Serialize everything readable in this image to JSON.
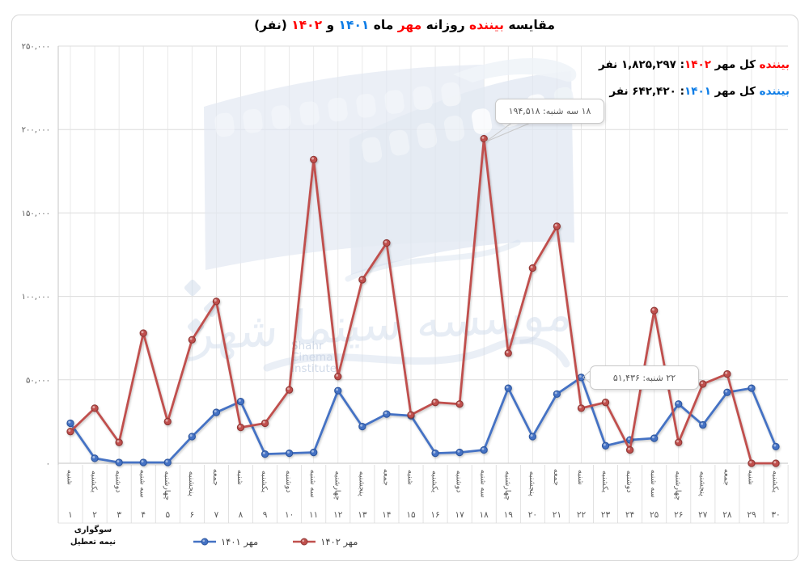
{
  "title": {
    "parts": [
      {
        "text": "مقایسه ",
        "color": "#000000"
      },
      {
        "text": "بیننده",
        "color": "#ff0000"
      },
      {
        "text": " روزانه ",
        "color": "#000000"
      },
      {
        "text": "مهر",
        "color": "#ff0000"
      },
      {
        "text": " ماه ",
        "color": "#000000"
      },
      {
        "text": "۱۴۰۱",
        "color": "#0c7ce6"
      },
      {
        "text": " و ",
        "color": "#000000"
      },
      {
        "text": "۱۴۰۲",
        "color": "#ff0000"
      },
      {
        "text": " (نفر)",
        "color": "#000000"
      }
    ]
  },
  "totals": [
    {
      "parts": [
        {
          "text": "بیننده",
          "color": "#ff0000"
        },
        {
          "text": " کل مهر ",
          "color": "#000000"
        },
        {
          "text": "۱۴۰۲",
          "color": "#ff0000"
        },
        {
          "text": ": ۱,۸۲۵,۲۹۷ نفر",
          "color": "#000000"
        }
      ]
    },
    {
      "parts": [
        {
          "text": "بیننده",
          "color": "#0c7ce6"
        },
        {
          "text": " کل مهر ",
          "color": "#000000"
        },
        {
          "text": "۱۴۰۱",
          "color": "#0c7ce6"
        },
        {
          "text": ": ۶۴۲,۴۲۰ نفر",
          "color": "#000000"
        }
      ]
    }
  ],
  "chart_data": {
    "type": "line",
    "title": "مقایسه بیننده روزانه مهر ماه ۱۴۰۱ و ۱۴۰۲ (نفر)",
    "x_day_numbers": [
      "۱",
      "۲",
      "۳",
      "۴",
      "۵",
      "۶",
      "۷",
      "۸",
      "۹",
      "۱۰",
      "۱۱",
      "۱۲",
      "۱۳",
      "۱۴",
      "۱۵",
      "۱۶",
      "۱۷",
      "۱۸",
      "۱۹",
      "۲۰",
      "۲۱",
      "۲۲",
      "۲۳",
      "۲۴",
      "۲۵",
      "۲۶",
      "۲۷",
      "۲۸",
      "۲۹",
      "۳۰"
    ],
    "x_day_names": [
      "شنبه",
      "یکشنبه",
      "دوشنبه",
      "سه شنبه",
      "چهارشنبه",
      "پنجشنبه",
      "جمعه",
      "شنبه",
      "یکشنبه",
      "دوشنبه",
      "سه شنبه",
      "چهارشنبه",
      "پنجشنبه",
      "جمعه",
      "شنبه",
      "یکشنبه",
      "دوشنبه",
      "سه شنبه",
      "چهارشنبه",
      "پنجشنبه",
      "جمعه",
      "شنبه",
      "یکشنبه",
      "دوشنبه",
      "سه شنبه",
      "چهارشنبه",
      "پنجشنبه",
      "جمعه",
      "شنبه",
      "یکشنبه"
    ],
    "ylim": [
      0,
      250000
    ],
    "ytick_step": 50000,
    "ytick_labels": [
      "۰",
      "۵۰,۰۰۰",
      "۱۰۰,۰۰۰",
      "۱۵۰,۰۰۰",
      "۲۰۰,۰۰۰",
      "۲۵۰,۰۰۰"
    ],
    "grid": true,
    "legend_position": "bottom",
    "series": [
      {
        "name": "مهر ۱۴۰۱",
        "color": "#4472c4",
        "stroke_dark": "#2e579e",
        "values": [
          24000,
          3000,
          500,
          500,
          500,
          16000,
          30500,
          37000,
          5500,
          6000,
          6500,
          43500,
          22000,
          29500,
          28500,
          6000,
          6500,
          8000,
          45000,
          16000,
          41500,
          51436,
          10500,
          14000,
          15000,
          35500,
          23000,
          42500,
          45000,
          10000
        ]
      },
      {
        "name": "مهر ۱۴۰۲",
        "color": "#c0504d",
        "stroke_dark": "#8f3836",
        "values": [
          19000,
          33000,
          12500,
          78000,
          25000,
          74000,
          97000,
          21500,
          24000,
          44000,
          182000,
          52000,
          110000,
          132000,
          29000,
          36500,
          35500,
          194518,
          66000,
          117000,
          142000,
          33000,
          36500,
          8000,
          91500,
          12500,
          47500,
          53500,
          0,
          0
        ]
      }
    ]
  },
  "annotations": [
    {
      "text": "۱۸ سه شنبه: ۱۹۴,۵۱۸",
      "series_index": 1,
      "day_index": 17,
      "value": 194518
    },
    {
      "text": "۲۲ شنبه: ۵۱,۴۳۶",
      "series_index": 0,
      "day_index": 21,
      "value": 51436
    }
  ],
  "footnote": {
    "line1": "سوگواری",
    "line2": "نیمه تعطیل"
  },
  "legend": [
    {
      "label": "مهر ۱۴۰۱",
      "color": "#4472c4",
      "stroke_dark": "#2e579e"
    },
    {
      "label": "مهر ۱۴۰۲",
      "color": "#c0504d",
      "stroke_dark": "#8f3836"
    }
  ],
  "watermark": {
    "persian": "موسسه سینما شهر",
    "english_lines": [
      "Shahr",
      "Cinema",
      "Institute"
    ]
  }
}
